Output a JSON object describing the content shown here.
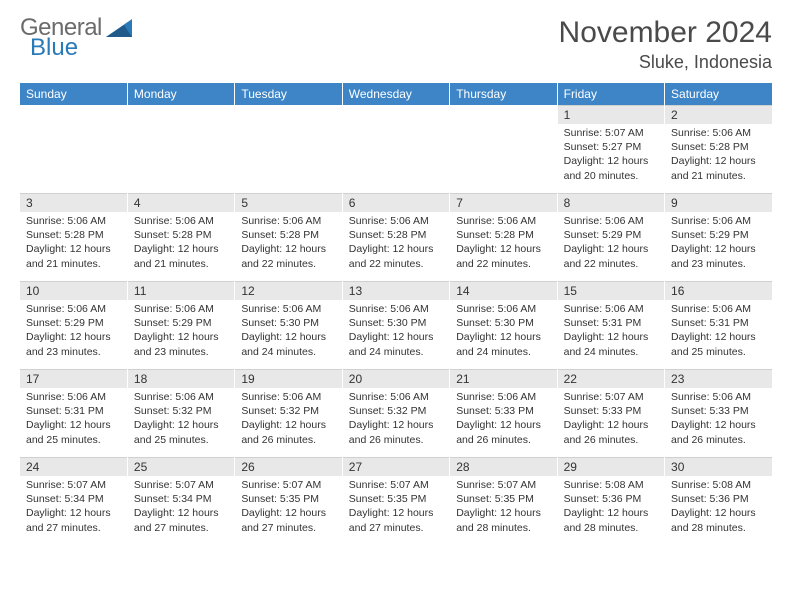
{
  "logo": {
    "word1": "General",
    "word2": "Blue",
    "text_color": "#6b6b6b",
    "blue_color": "#2a7ab8"
  },
  "title": {
    "month": "November 2024",
    "location": "Sluke, Indonesia",
    "month_fontsize": 30,
    "location_fontsize": 18,
    "color": "#4a4a4a"
  },
  "calendar": {
    "header_bg": "#3d85c6",
    "header_fg": "#ffffff",
    "daynum_bg": "#e8e8e8",
    "border_color": "#d0d0d0",
    "day_headers": [
      "Sunday",
      "Monday",
      "Tuesday",
      "Wednesday",
      "Thursday",
      "Friday",
      "Saturday"
    ],
    "weeks": [
      [
        null,
        null,
        null,
        null,
        null,
        {
          "n": "1",
          "sunrise": "5:07 AM",
          "sunset": "5:27 PM",
          "dl": "12 hours and 20 minutes."
        },
        {
          "n": "2",
          "sunrise": "5:06 AM",
          "sunset": "5:28 PM",
          "dl": "12 hours and 21 minutes."
        }
      ],
      [
        {
          "n": "3",
          "sunrise": "5:06 AM",
          "sunset": "5:28 PM",
          "dl": "12 hours and 21 minutes."
        },
        {
          "n": "4",
          "sunrise": "5:06 AM",
          "sunset": "5:28 PM",
          "dl": "12 hours and 21 minutes."
        },
        {
          "n": "5",
          "sunrise": "5:06 AM",
          "sunset": "5:28 PM",
          "dl": "12 hours and 22 minutes."
        },
        {
          "n": "6",
          "sunrise": "5:06 AM",
          "sunset": "5:28 PM",
          "dl": "12 hours and 22 minutes."
        },
        {
          "n": "7",
          "sunrise": "5:06 AM",
          "sunset": "5:28 PM",
          "dl": "12 hours and 22 minutes."
        },
        {
          "n": "8",
          "sunrise": "5:06 AM",
          "sunset": "5:29 PM",
          "dl": "12 hours and 22 minutes."
        },
        {
          "n": "9",
          "sunrise": "5:06 AM",
          "sunset": "5:29 PM",
          "dl": "12 hours and 23 minutes."
        }
      ],
      [
        {
          "n": "10",
          "sunrise": "5:06 AM",
          "sunset": "5:29 PM",
          "dl": "12 hours and 23 minutes."
        },
        {
          "n": "11",
          "sunrise": "5:06 AM",
          "sunset": "5:29 PM",
          "dl": "12 hours and 23 minutes."
        },
        {
          "n": "12",
          "sunrise": "5:06 AM",
          "sunset": "5:30 PM",
          "dl": "12 hours and 24 minutes."
        },
        {
          "n": "13",
          "sunrise": "5:06 AM",
          "sunset": "5:30 PM",
          "dl": "12 hours and 24 minutes."
        },
        {
          "n": "14",
          "sunrise": "5:06 AM",
          "sunset": "5:30 PM",
          "dl": "12 hours and 24 minutes."
        },
        {
          "n": "15",
          "sunrise": "5:06 AM",
          "sunset": "5:31 PM",
          "dl": "12 hours and 24 minutes."
        },
        {
          "n": "16",
          "sunrise": "5:06 AM",
          "sunset": "5:31 PM",
          "dl": "12 hours and 25 minutes."
        }
      ],
      [
        {
          "n": "17",
          "sunrise": "5:06 AM",
          "sunset": "5:31 PM",
          "dl": "12 hours and 25 minutes."
        },
        {
          "n": "18",
          "sunrise": "5:06 AM",
          "sunset": "5:32 PM",
          "dl": "12 hours and 25 minutes."
        },
        {
          "n": "19",
          "sunrise": "5:06 AM",
          "sunset": "5:32 PM",
          "dl": "12 hours and 26 minutes."
        },
        {
          "n": "20",
          "sunrise": "5:06 AM",
          "sunset": "5:32 PM",
          "dl": "12 hours and 26 minutes."
        },
        {
          "n": "21",
          "sunrise": "5:06 AM",
          "sunset": "5:33 PM",
          "dl": "12 hours and 26 minutes."
        },
        {
          "n": "22",
          "sunrise": "5:07 AM",
          "sunset": "5:33 PM",
          "dl": "12 hours and 26 minutes."
        },
        {
          "n": "23",
          "sunrise": "5:06 AM",
          "sunset": "5:33 PM",
          "dl": "12 hours and 26 minutes."
        }
      ],
      [
        {
          "n": "24",
          "sunrise": "5:07 AM",
          "sunset": "5:34 PM",
          "dl": "12 hours and 27 minutes."
        },
        {
          "n": "25",
          "sunrise": "5:07 AM",
          "sunset": "5:34 PM",
          "dl": "12 hours and 27 minutes."
        },
        {
          "n": "26",
          "sunrise": "5:07 AM",
          "sunset": "5:35 PM",
          "dl": "12 hours and 27 minutes."
        },
        {
          "n": "27",
          "sunrise": "5:07 AM",
          "sunset": "5:35 PM",
          "dl": "12 hours and 27 minutes."
        },
        {
          "n": "28",
          "sunrise": "5:07 AM",
          "sunset": "5:35 PM",
          "dl": "12 hours and 28 minutes."
        },
        {
          "n": "29",
          "sunrise": "5:08 AM",
          "sunset": "5:36 PM",
          "dl": "12 hours and 28 minutes."
        },
        {
          "n": "30",
          "sunrise": "5:08 AM",
          "sunset": "5:36 PM",
          "dl": "12 hours and 28 minutes."
        }
      ]
    ]
  },
  "labels": {
    "sunrise_prefix": "Sunrise: ",
    "sunset_prefix": "Sunset: ",
    "daylight_prefix": "Daylight: "
  }
}
